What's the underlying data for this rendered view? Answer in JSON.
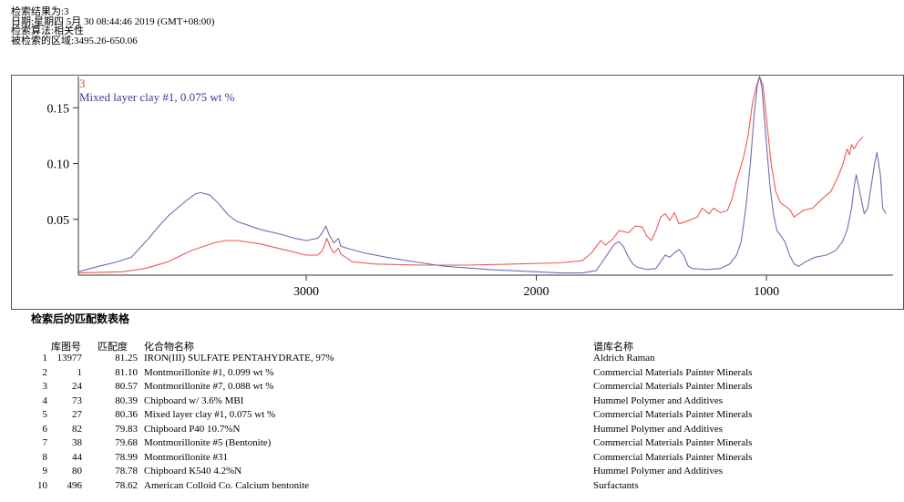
{
  "header": {
    "line1": "检索结果为:3",
    "line2": "日期:星期四 5月 30 08:44:46 2019 (GMT+08:00)",
    "line3": "检索算法:相关性",
    "line4": "被检索的区域:3495.26-650.06"
  },
  "chart_data": {
    "type": "line",
    "annotation_index": "3",
    "annotation_label": "Mixed layer clay #1, 0.075 wt %",
    "x_ticks": [
      3000,
      2000,
      1000
    ],
    "y_ticks": [
      "0.15",
      "0.10",
      "0.05"
    ],
    "xlim": [
      3990,
      450
    ],
    "ylim": [
      0,
      0.178
    ],
    "x_reversed": true,
    "series": [
      {
        "color": "#ef5858",
        "points": [
          [
            3990,
            0.002
          ],
          [
            3800,
            0.003
          ],
          [
            3700,
            0.006
          ],
          [
            3600,
            0.012
          ],
          [
            3500,
            0.022
          ],
          [
            3400,
            0.029
          ],
          [
            3350,
            0.031
          ],
          [
            3300,
            0.031
          ],
          [
            3200,
            0.028
          ],
          [
            3100,
            0.023
          ],
          [
            3000,
            0.018
          ],
          [
            2950,
            0.018
          ],
          [
            2930,
            0.022
          ],
          [
            2910,
            0.033
          ],
          [
            2895,
            0.025
          ],
          [
            2880,
            0.02
          ],
          [
            2860,
            0.024
          ],
          [
            2850,
            0.019
          ],
          [
            2800,
            0.012
          ],
          [
            2700,
            0.01
          ],
          [
            2500,
            0.009
          ],
          [
            2300,
            0.009
          ],
          [
            2100,
            0.01
          ],
          [
            1900,
            0.011
          ],
          [
            1800,
            0.013
          ],
          [
            1760,
            0.02
          ],
          [
            1720,
            0.031
          ],
          [
            1700,
            0.027
          ],
          [
            1670,
            0.032
          ],
          [
            1640,
            0.04
          ],
          [
            1600,
            0.038
          ],
          [
            1570,
            0.044
          ],
          [
            1540,
            0.043
          ],
          [
            1520,
            0.035
          ],
          [
            1500,
            0.031
          ],
          [
            1480,
            0.04
          ],
          [
            1460,
            0.052
          ],
          [
            1440,
            0.055
          ],
          [
            1420,
            0.049
          ],
          [
            1400,
            0.056
          ],
          [
            1380,
            0.046
          ],
          [
            1350,
            0.048
          ],
          [
            1300,
            0.052
          ],
          [
            1280,
            0.06
          ],
          [
            1250,
            0.055
          ],
          [
            1230,
            0.06
          ],
          [
            1200,
            0.056
          ],
          [
            1170,
            0.058
          ],
          [
            1150,
            0.068
          ],
          [
            1130,
            0.085
          ],
          [
            1100,
            0.105
          ],
          [
            1080,
            0.125
          ],
          [
            1060,
            0.155
          ],
          [
            1040,
            0.172
          ],
          [
            1030,
            0.178
          ],
          [
            1015,
            0.17
          ],
          [
            1000,
            0.14
          ],
          [
            980,
            0.1
          ],
          [
            960,
            0.075
          ],
          [
            940,
            0.065
          ],
          [
            920,
            0.062
          ],
          [
            900,
            0.059
          ],
          [
            880,
            0.052
          ],
          [
            860,
            0.055
          ],
          [
            840,
            0.058
          ],
          [
            800,
            0.06
          ],
          [
            760,
            0.068
          ],
          [
            720,
            0.075
          ],
          [
            690,
            0.088
          ],
          [
            670,
            0.098
          ],
          [
            650,
            0.113
          ],
          [
            640,
            0.108
          ],
          [
            630,
            0.117
          ],
          [
            620,
            0.113
          ],
          [
            600,
            0.12
          ],
          [
            580,
            0.124
          ]
        ]
      },
      {
        "color": "#6e6eb4",
        "points": [
          [
            3990,
            0.003
          ],
          [
            3900,
            0.008
          ],
          [
            3820,
            0.012
          ],
          [
            3760,
            0.016
          ],
          [
            3720,
            0.025
          ],
          [
            3680,
            0.034
          ],
          [
            3640,
            0.044
          ],
          [
            3600,
            0.053
          ],
          [
            3560,
            0.06
          ],
          [
            3520,
            0.067
          ],
          [
            3480,
            0.073
          ],
          [
            3460,
            0.074
          ],
          [
            3420,
            0.072
          ],
          [
            3380,
            0.064
          ],
          [
            3340,
            0.054
          ],
          [
            3300,
            0.048
          ],
          [
            3200,
            0.041
          ],
          [
            3100,
            0.036
          ],
          [
            3050,
            0.033
          ],
          [
            3000,
            0.031
          ],
          [
            2950,
            0.033
          ],
          [
            2930,
            0.038
          ],
          [
            2915,
            0.044
          ],
          [
            2900,
            0.036
          ],
          [
            2880,
            0.029
          ],
          [
            2860,
            0.033
          ],
          [
            2850,
            0.026
          ],
          [
            2820,
            0.024
          ],
          [
            2750,
            0.02
          ],
          [
            2650,
            0.016
          ],
          [
            2500,
            0.011
          ],
          [
            2400,
            0.008
          ],
          [
            2200,
            0.005
          ],
          [
            2000,
            0.003
          ],
          [
            1900,
            0.002
          ],
          [
            1800,
            0.002
          ],
          [
            1740,
            0.004
          ],
          [
            1720,
            0.01
          ],
          [
            1700,
            0.016
          ],
          [
            1680,
            0.022
          ],
          [
            1660,
            0.028
          ],
          [
            1640,
            0.03
          ],
          [
            1620,
            0.025
          ],
          [
            1600,
            0.016
          ],
          [
            1580,
            0.01
          ],
          [
            1560,
            0.007
          ],
          [
            1520,
            0.005
          ],
          [
            1480,
            0.006
          ],
          [
            1460,
            0.012
          ],
          [
            1440,
            0.018
          ],
          [
            1420,
            0.016
          ],
          [
            1400,
            0.02
          ],
          [
            1380,
            0.023
          ],
          [
            1360,
            0.018
          ],
          [
            1340,
            0.008
          ],
          [
            1320,
            0.006
          ],
          [
            1260,
            0.005
          ],
          [
            1200,
            0.006
          ],
          [
            1160,
            0.01
          ],
          [
            1130,
            0.018
          ],
          [
            1110,
            0.03
          ],
          [
            1090,
            0.06
          ],
          [
            1070,
            0.1
          ],
          [
            1055,
            0.14
          ],
          [
            1040,
            0.17
          ],
          [
            1030,
            0.178
          ],
          [
            1020,
            0.168
          ],
          [
            1005,
            0.13
          ],
          [
            985,
            0.08
          ],
          [
            970,
            0.055
          ],
          [
            955,
            0.04
          ],
          [
            940,
            0.036
          ],
          [
            920,
            0.03
          ],
          [
            900,
            0.018
          ],
          [
            880,
            0.01
          ],
          [
            860,
            0.008
          ],
          [
            830,
            0.012
          ],
          [
            790,
            0.016
          ],
          [
            740,
            0.018
          ],
          [
            700,
            0.022
          ],
          [
            670,
            0.03
          ],
          [
            650,
            0.04
          ],
          [
            630,
            0.06
          ],
          [
            620,
            0.078
          ],
          [
            610,
            0.09
          ],
          [
            590,
            0.07
          ],
          [
            575,
            0.055
          ],
          [
            560,
            0.06
          ],
          [
            545,
            0.08
          ],
          [
            530,
            0.1
          ],
          [
            520,
            0.11
          ],
          [
            505,
            0.09
          ],
          [
            495,
            0.06
          ],
          [
            480,
            0.055
          ]
        ]
      }
    ]
  },
  "table": {
    "title": "检索后的匹配数表格",
    "headers": {
      "lib": "库图号",
      "score": "匹配度",
      "name": "化合物名称",
      "db": "谱库名称"
    },
    "rows": [
      {
        "idx": "1",
        "lib": "13977",
        "score": "81.25",
        "name": "IRON(III) SULFATE PENTAHYDRATE, 97%",
        "db": "Aldrich Raman"
      },
      {
        "idx": "2",
        "lib": "1",
        "score": "81.10",
        "name": "Montmorillonite #1, 0.099 wt %",
        "db": "Commercial Materials Painter Minerals"
      },
      {
        "idx": "3",
        "lib": "24",
        "score": "80.57",
        "name": "Montmorillonite #7, 0.088 wt %",
        "db": "Commercial Materials Painter Minerals"
      },
      {
        "idx": "4",
        "lib": "73",
        "score": "80.39",
        "name": "Chipboard w/ 3.6% MBI",
        "db": "Hummel Polymer and Additives"
      },
      {
        "idx": "5",
        "lib": "27",
        "score": "80.36",
        "name": "Mixed layer clay #1, 0.075 wt %",
        "db": "Commercial Materials Painter Minerals"
      },
      {
        "idx": "6",
        "lib": "82",
        "score": "79.83",
        "name": "Chipboard P40 10.7%N",
        "db": "Hummel Polymer and Additives"
      },
      {
        "idx": "7",
        "lib": "38",
        "score": "79.68",
        "name": "Montmorillonite #5 (Bentonite)",
        "db": "Commercial Materials Painter Minerals"
      },
      {
        "idx": "8",
        "lib": "44",
        "score": "78.99",
        "name": "Montmorillonite #31",
        "db": "Commercial Materials Painter Minerals"
      },
      {
        "idx": "9",
        "lib": "80",
        "score": "78.78",
        "name": "Chipboard K540 4.2%N",
        "db": "Hummel Polymer and Additives"
      },
      {
        "idx": "10",
        "lib": "496",
        "score": "78.62",
        "name": "American Colloid Co. Calcium bentonite",
        "db": "Surfactants"
      }
    ]
  }
}
